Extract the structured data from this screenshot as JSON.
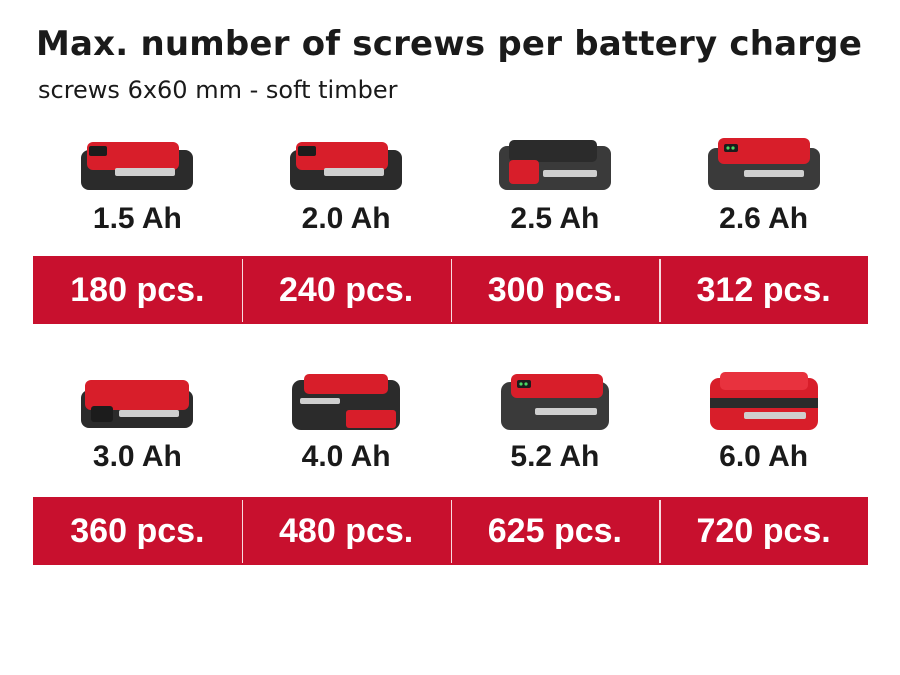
{
  "title": "Max. number of screws per battery charge",
  "subtitle": "screws 6x60 mm - soft timber",
  "colors": {
    "accent": "#c8102e",
    "battery_dark": "#2b2b2b",
    "battery_red": "#d81e2a"
  },
  "rows": [
    {
      "batteries": [
        {
          "capacity": "1.5 Ah",
          "screws": "180 pcs.",
          "style": "slim"
        },
        {
          "capacity": "2.0 Ah",
          "screws": "240 pcs.",
          "style": "slim"
        },
        {
          "capacity": "2.5 Ah",
          "screws": "300 pcs.",
          "style": "plus"
        },
        {
          "capacity": "2.6 Ah",
          "screws": "312 pcs.",
          "style": "plus"
        }
      ]
    },
    {
      "batteries": [
        {
          "capacity": "3.0 Ah",
          "screws": "360 pcs.",
          "style": "slim"
        },
        {
          "capacity": "4.0 Ah",
          "screws": "480 pcs.",
          "style": "tall"
        },
        {
          "capacity": "5.2 Ah",
          "screws": "625 pcs.",
          "style": "plus-tall"
        },
        {
          "capacity": "6.0 Ah",
          "screws": "720 pcs.",
          "style": "tall-red"
        }
      ]
    }
  ]
}
